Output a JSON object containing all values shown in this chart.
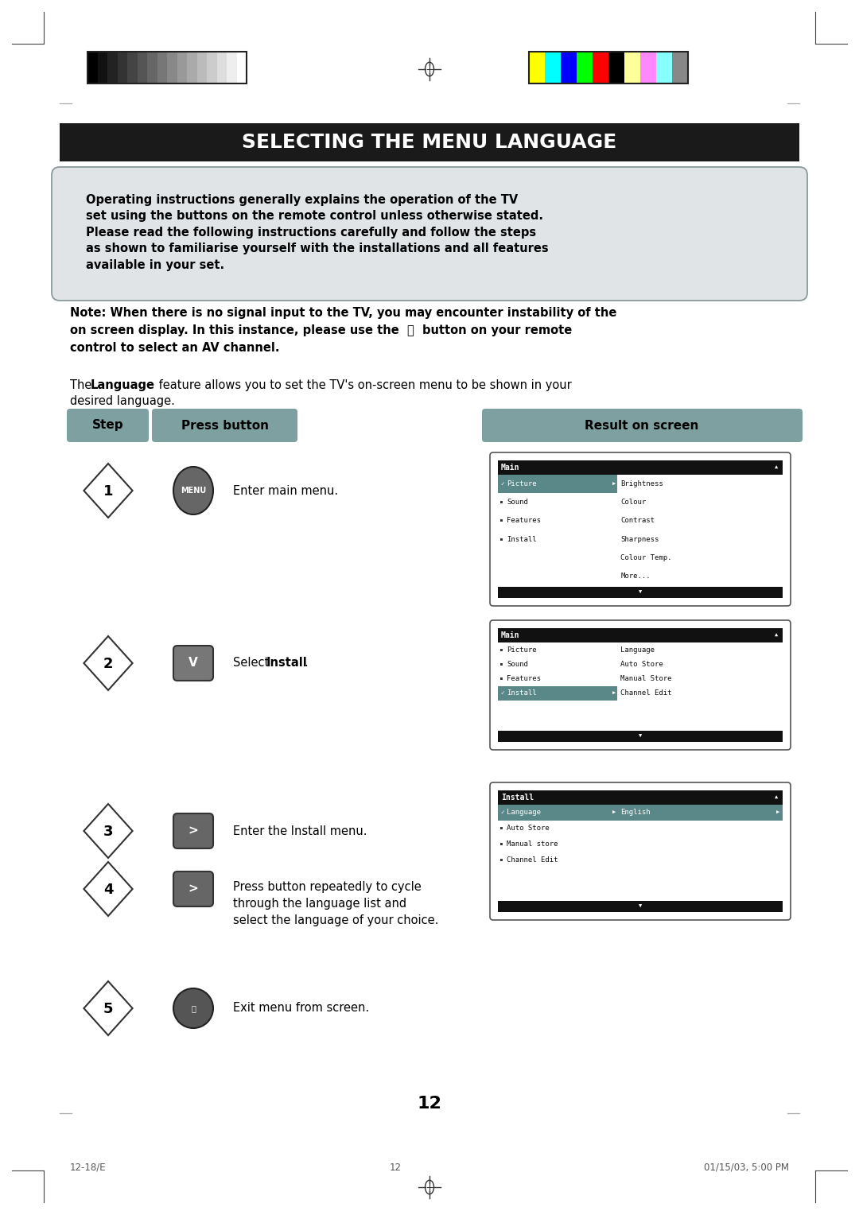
{
  "title": "SELECTING THE MENU LANGUAGE",
  "title_bg": "#1a1a1a",
  "title_color": "#ffffff",
  "page_bg": "#ffffff",
  "note_box_bg": "#e0e4e6",
  "note_box_border": "#8a9a9a",
  "header_bg": "#7fa0a0",
  "header_text_color": "#000000",
  "screen1_title": "Main",
  "screen1_items": [
    "Picture",
    "Sound",
    "Features",
    "Install"
  ],
  "screen1_right": [
    "Brightness",
    "Colour",
    "Contrast",
    "Sharpness",
    "Colour Temp.",
    "More..."
  ],
  "screen2_title": "Main",
  "screen2_items": [
    "Picture",
    "Sound",
    "Features",
    "Install"
  ],
  "screen2_right": [
    "Language",
    "Auto Store",
    "Manual Store",
    "Channel Edit"
  ],
  "screen3_title": "Install",
  "screen3_items": [
    "Language",
    "Auto Store",
    "Manual store",
    "Channel Edit"
  ],
  "screen3_right": "English",
  "page_number": "12",
  "footer_left": "12-18/E",
  "footer_center": "12",
  "footer_right": "01/15/03, 5:00 PM",
  "grayscale_colors": [
    "#000000",
    "#111111",
    "#222222",
    "#333333",
    "#444444",
    "#555555",
    "#666666",
    "#777777",
    "#888888",
    "#999999",
    "#aaaaaa",
    "#bbbbbb",
    "#cccccc",
    "#dddddd",
    "#eeeeee",
    "#ffffff"
  ],
  "color_bars": [
    "#ffff00",
    "#00ffff",
    "#0000ff",
    "#00ff00",
    "#ff0000",
    "#000000",
    "#ffff99",
    "#ff88ff",
    "#88ffff",
    "#888888"
  ]
}
